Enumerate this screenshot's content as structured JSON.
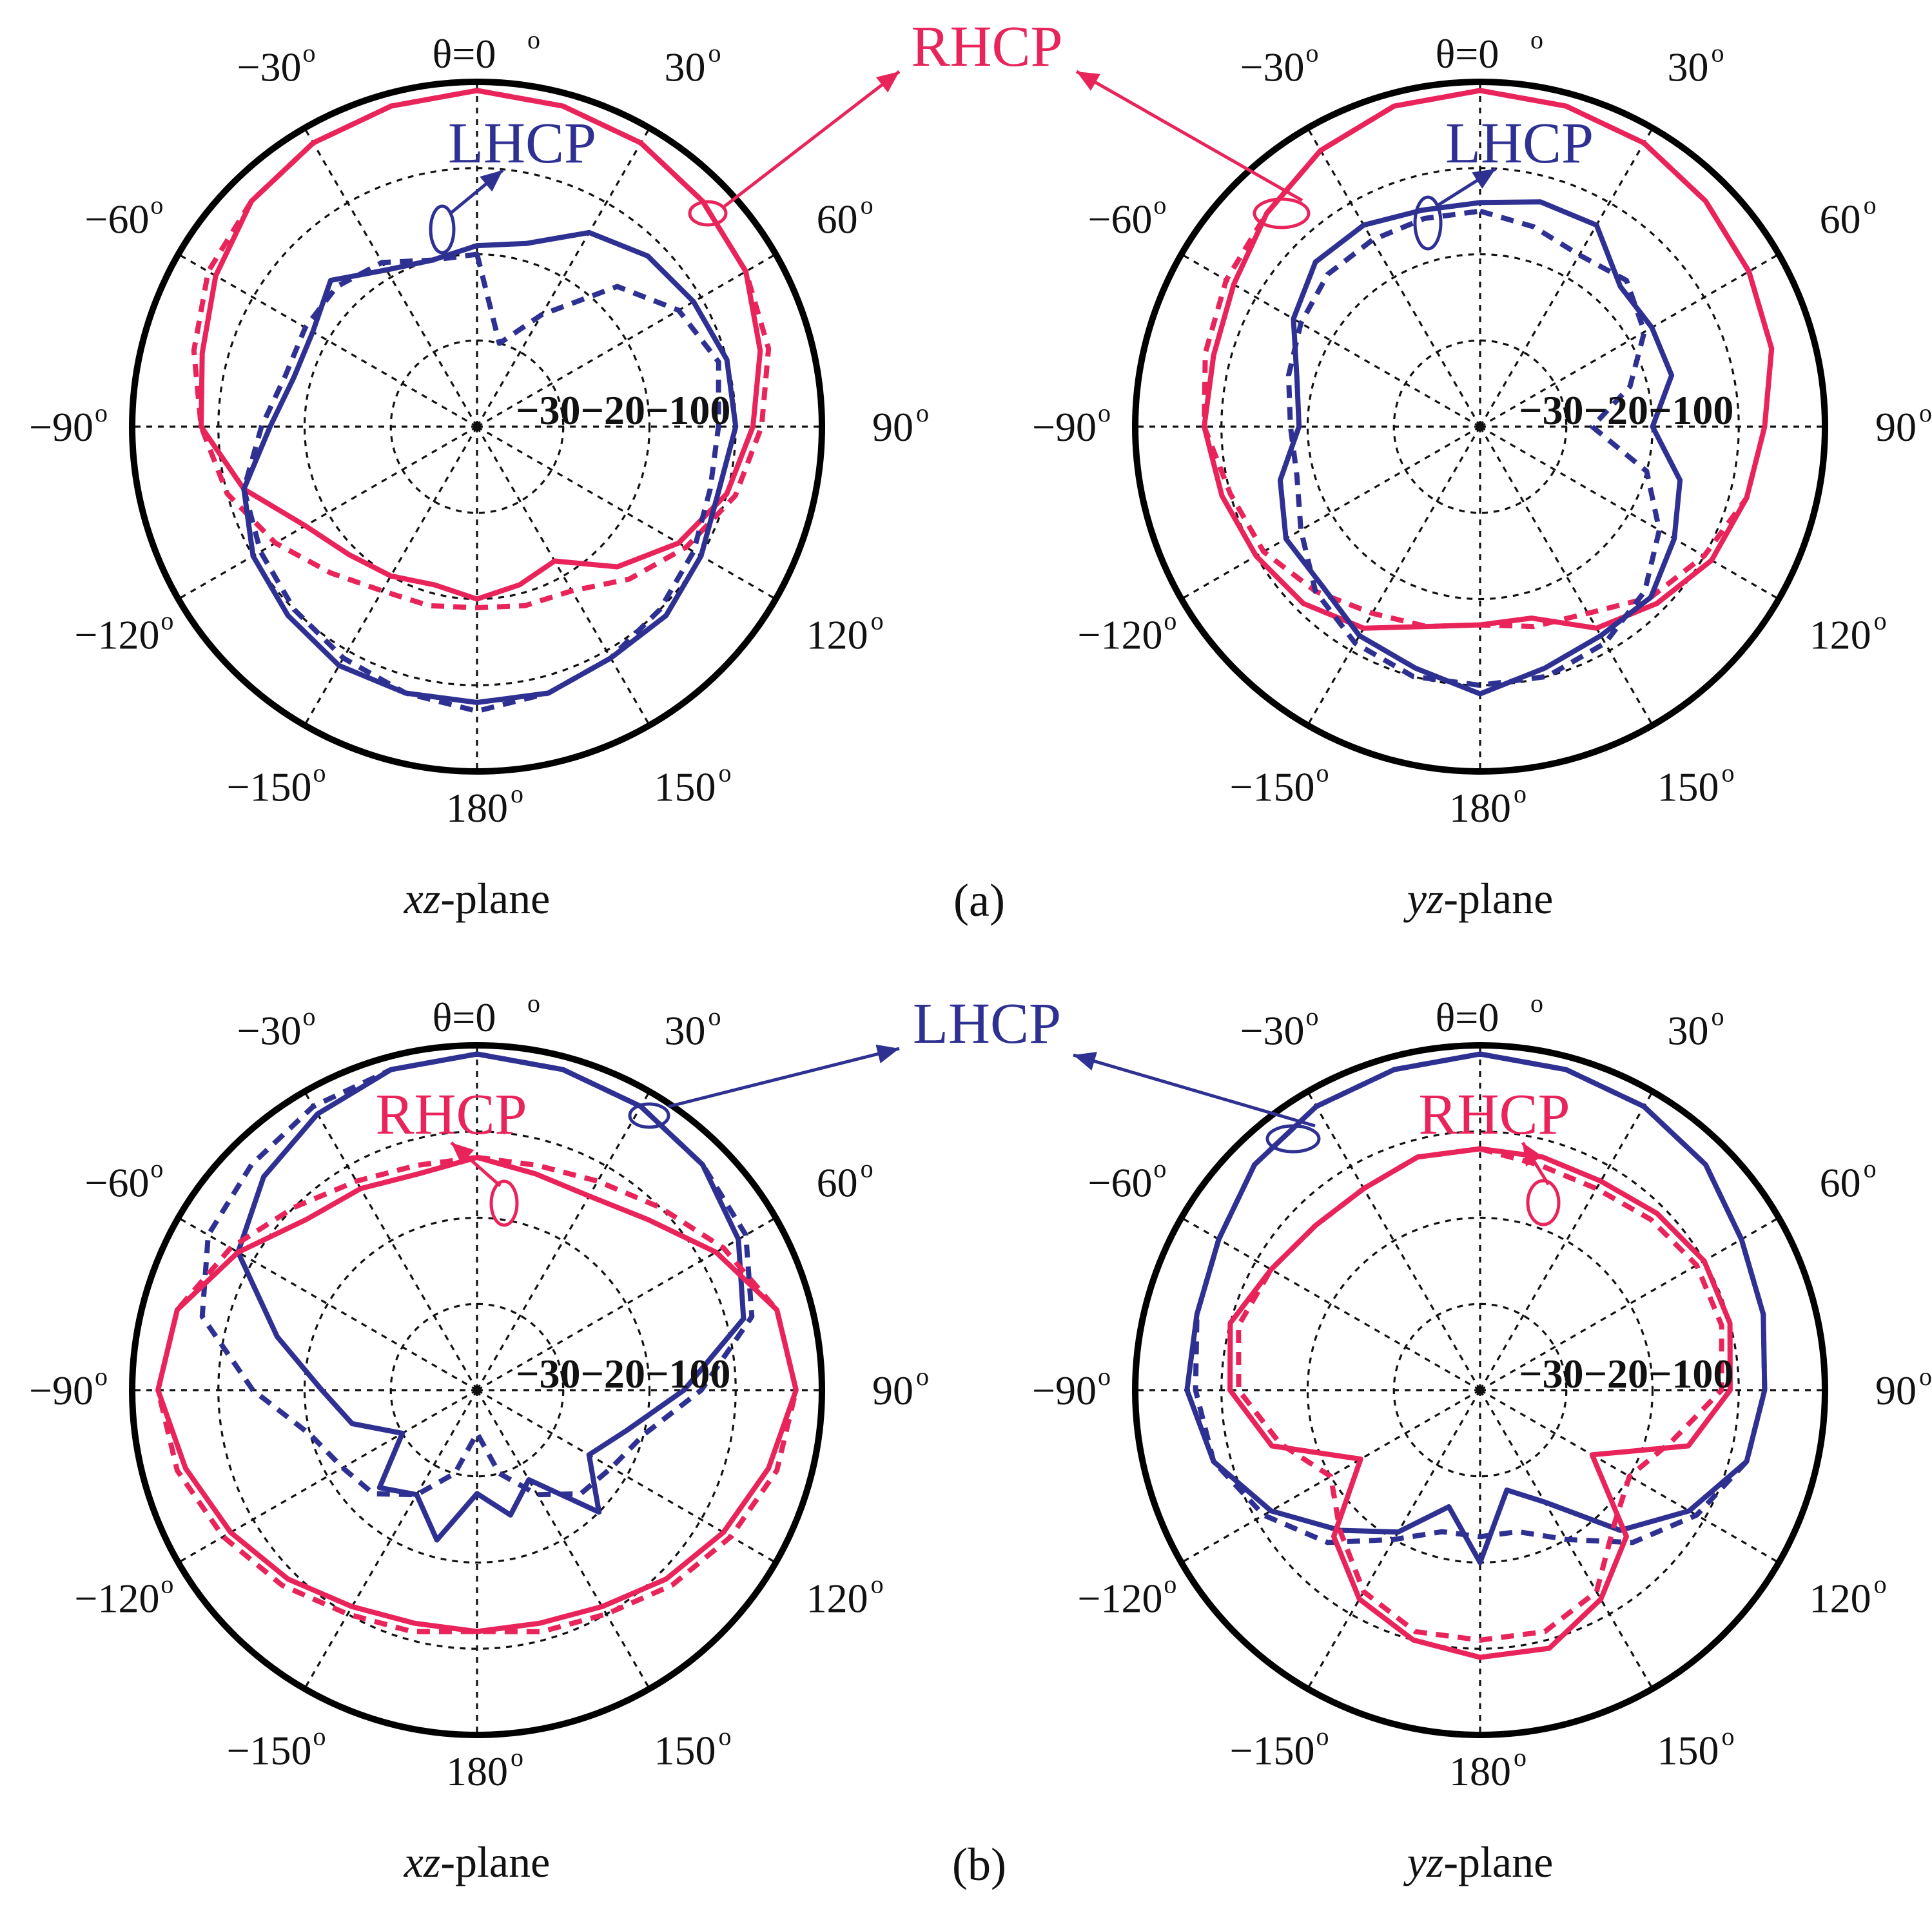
{
  "colors": {
    "rhcp": "#e8245a",
    "lhcp": "#2e3192",
    "grid": "#111111",
    "text": "#111111"
  },
  "figure": {
    "panel_labels": [
      "(a)",
      "(b)"
    ],
    "plane_labels": [
      {
        "italic": "xz",
        "rest": "-plane"
      },
      {
        "italic": "yz",
        "rest": "-plane"
      }
    ],
    "angle_labels": {
      "top": "θ=0",
      "labels": [
        "30",
        "60",
        "90",
        "120",
        "150",
        "180",
        "−150",
        "−120",
        "−90",
        "−60",
        "−30"
      ],
      "degree_mark": "o"
    },
    "radial_labels": [
      "−30",
      "−20",
      "−10",
      "0"
    ]
  },
  "callouts": {
    "a": {
      "main": "RHCP",
      "secondary": "LHCP"
    },
    "b": {
      "main": "LHCP",
      "secondary": "RHCP"
    }
  },
  "chart_data": [
    {
      "type": "polar",
      "panel": "(a)",
      "plane": "xz-plane",
      "rlim": [
        -40,
        0
      ],
      "rticks": [
        -30,
        -20,
        -10,
        0
      ],
      "grid": true,
      "theta": [
        0,
        15,
        30,
        45,
        60,
        75,
        90,
        105,
        120,
        135,
        150,
        165,
        180,
        -165,
        -150,
        -135,
        -120,
        -105,
        -90,
        -75,
        -60,
        -45,
        -30,
        -15
      ],
      "series": [
        {
          "name": "RHCP",
          "style": "measured",
          "r": [
            -1,
            -1.5,
            -2,
            -3,
            -4,
            -6,
            -8,
            -10,
            -13,
            -17,
            -22,
            -21,
            -20,
            -21,
            -20,
            -19,
            -17,
            -12,
            -8,
            -7,
            -5,
            -3,
            -2,
            -1.5
          ]
        },
        {
          "name": "RHCP",
          "style": "simulated",
          "r": [
            -1,
            -1.5,
            -2,
            -3,
            -4,
            -5,
            -7,
            -9,
            -12,
            -15,
            -18,
            -18.5,
            -19,
            -18.5,
            -18,
            -16,
            -13,
            -10,
            -8,
            -6,
            -4,
            -3,
            -2,
            -1.5
          ]
        },
        {
          "name": "LHCP",
          "style": "measured",
          "r": [
            -19,
            -18,
            -14,
            -12,
            -11,
            -10,
            -10,
            -11,
            -10,
            -9,
            -9,
            -8,
            -8,
            -8,
            -8,
            -9,
            -10,
            -12,
            -16,
            -18,
            -18,
            -16,
            -19,
            -20
          ]
        },
        {
          "name": "LHCP",
          "style": "simulated",
          "r": [
            -20,
            -30,
            -25,
            -17,
            -13,
            -11,
            -12,
            -12,
            -11,
            -10,
            -9,
            -8,
            -7,
            -8,
            -9,
            -10,
            -11,
            -12,
            -15,
            -17,
            -17,
            -17,
            -18,
            -20
          ]
        }
      ]
    },
    {
      "type": "polar",
      "panel": "(a)",
      "plane": "yz-plane",
      "rlim": [
        -40,
        0
      ],
      "rticks": [
        -30,
        -20,
        -10,
        0
      ],
      "grid": true,
      "theta": [
        0,
        15,
        30,
        45,
        60,
        75,
        90,
        105,
        120,
        135,
        150,
        165,
        180,
        -165,
        -150,
        -135,
        -120,
        -105,
        -90,
        -75,
        -60,
        -45,
        -30,
        -15
      ],
      "series": [
        {
          "name": "RHCP",
          "style": "measured",
          "r": [
            -1,
            -1.5,
            -2,
            -3,
            -4,
            -5,
            -7,
            -8,
            -9,
            -11,
            -13,
            -17,
            -17,
            -16,
            -13,
            -11,
            -10,
            -9,
            -8,
            -8,
            -7,
            -5,
            -3,
            -1.5
          ]
        },
        {
          "name": "RHCP",
          "style": "simulated",
          "r": [
            -1,
            -1.5,
            -2,
            -3,
            -4,
            -5,
            -7,
            -8,
            -10,
            -12,
            -15,
            -16,
            -17,
            -16,
            -15,
            -13,
            -11,
            -10,
            -8,
            -7,
            -6,
            -5,
            -3,
            -1.5
          ]
        },
        {
          "name": "LHCP",
          "style": "measured",
          "r": [
            -14,
            -13,
            -13,
            -17,
            -17,
            -17,
            -20,
            -16,
            -14,
            -12,
            -12,
            -11,
            -9,
            -11,
            -12,
            -14,
            -14,
            -16,
            -19,
            -18,
            -15,
            -13,
            -13,
            -14
          ]
        },
        {
          "name": "LHCP",
          "style": "simulated",
          "r": [
            -15,
            -16,
            -17,
            -16,
            -18,
            -22,
            -27,
            -20,
            -16,
            -13,
            -11,
            -10,
            -10,
            -10,
            -11,
            -13,
            -16,
            -18,
            -18,
            -17,
            -16,
            -15,
            -15,
            -15
          ]
        }
      ]
    },
    {
      "type": "polar",
      "panel": "(b)",
      "plane": "xz-plane",
      "rlim": [
        -40,
        0
      ],
      "rticks": [
        -30,
        -20,
        -10,
        0
      ],
      "grid": true,
      "theta": [
        0,
        15,
        30,
        45,
        60,
        75,
        90,
        105,
        120,
        135,
        150,
        165,
        180,
        -165,
        -150,
        -135,
        -120,
        -105,
        -90,
        -75,
        -60,
        -45,
        -30,
        -15
      ],
      "series": [
        {
          "name": "LHCP",
          "style": "measured",
          "r": [
            -1,
            -1.5,
            -2,
            -3,
            -5,
            -8,
            -16,
            -22,
            -25,
            -20,
            -28,
            -25,
            -28,
            -22,
            -26,
            -24,
            -30,
            -25,
            -22,
            -16,
            -8,
            -5,
            -3,
            -1.5
          ]
        },
        {
          "name": "LHCP",
          "style": "simulated",
          "r": [
            -1,
            -1.5,
            -2,
            -3,
            -4,
            -7,
            -14,
            -20,
            -22,
            -23,
            -26,
            -30,
            -35,
            -30,
            -26,
            -23,
            -22,
            -20,
            -14,
            -7,
            -4,
            -3,
            -2,
            -1.5
          ]
        },
        {
          "name": "RHCP",
          "style": "measured",
          "r": [
            -13,
            -14,
            -14,
            -12,
            -8,
            -4,
            -3,
            -5,
            -7,
            -9,
            -11,
            -12,
            -12,
            -12,
            -11,
            -9,
            -7,
            -5,
            -3,
            -4,
            -8,
            -12,
            -13,
            -14
          ]
        },
        {
          "name": "RHCP",
          "style": "simulated",
          "r": [
            -13,
            -13,
            -12,
            -10,
            -7,
            -4,
            -3,
            -4,
            -6,
            -8,
            -10,
            -11,
            -12,
            -11,
            -10,
            -8,
            -6,
            -4,
            -3,
            -4,
            -7,
            -10,
            -12,
            -13
          ]
        }
      ]
    },
    {
      "type": "polar",
      "panel": "(b)",
      "plane": "yz-plane",
      "rlim": [
        -40,
        0
      ],
      "rticks": [
        -30,
        -20,
        -10,
        0
      ],
      "grid": true,
      "theta": [
        0,
        15,
        30,
        45,
        60,
        75,
        90,
        105,
        120,
        135,
        150,
        165,
        180,
        -165,
        -150,
        -135,
        -120,
        -105,
        -90,
        -75,
        -60,
        -45,
        -30,
        -15
      ],
      "series": [
        {
          "name": "LHCP",
          "style": "measured",
          "r": [
            -1,
            -1.5,
            -2,
            -3,
            -5,
            -6,
            -7,
            -8,
            -12,
            -17,
            -25,
            -28,
            -20,
            -26,
            -21,
            -17,
            -12,
            -8,
            -6,
            -6,
            -5,
            -3,
            -2,
            -1.5
          ]
        },
        {
          "name": "LHCP",
          "style": "simulated",
          "r": [
            -1,
            -1.5,
            -2,
            -3,
            -5,
            -6,
            -7,
            -8,
            -11,
            -15,
            -20,
            -23,
            -23,
            -23,
            -20,
            -15,
            -11,
            -8,
            -7,
            -6,
            -5,
            -3,
            -2,
            -1.5
          ]
        },
        {
          "name": "RHCP",
          "style": "measured",
          "r": [
            -12,
            -12,
            -12,
            -11,
            -10,
            -10,
            -11,
            -15,
            -25,
            -16,
            -12,
            -9,
            -9,
            -10,
            -12,
            -16,
            -24,
            -15,
            -11,
            -10,
            -12,
            -13,
            -13,
            -12
          ]
        },
        {
          "name": "RHCP",
          "style": "simulated",
          "r": [
            -12,
            -13,
            -13,
            -12,
            -11,
            -11,
            -12,
            -17,
            -20,
            -18,
            -13,
            -11,
            -11,
            -11,
            -13,
            -17,
            -20,
            -16,
            -12,
            -11,
            -12,
            -13,
            -13,
            -12
          ]
        }
      ]
    }
  ]
}
